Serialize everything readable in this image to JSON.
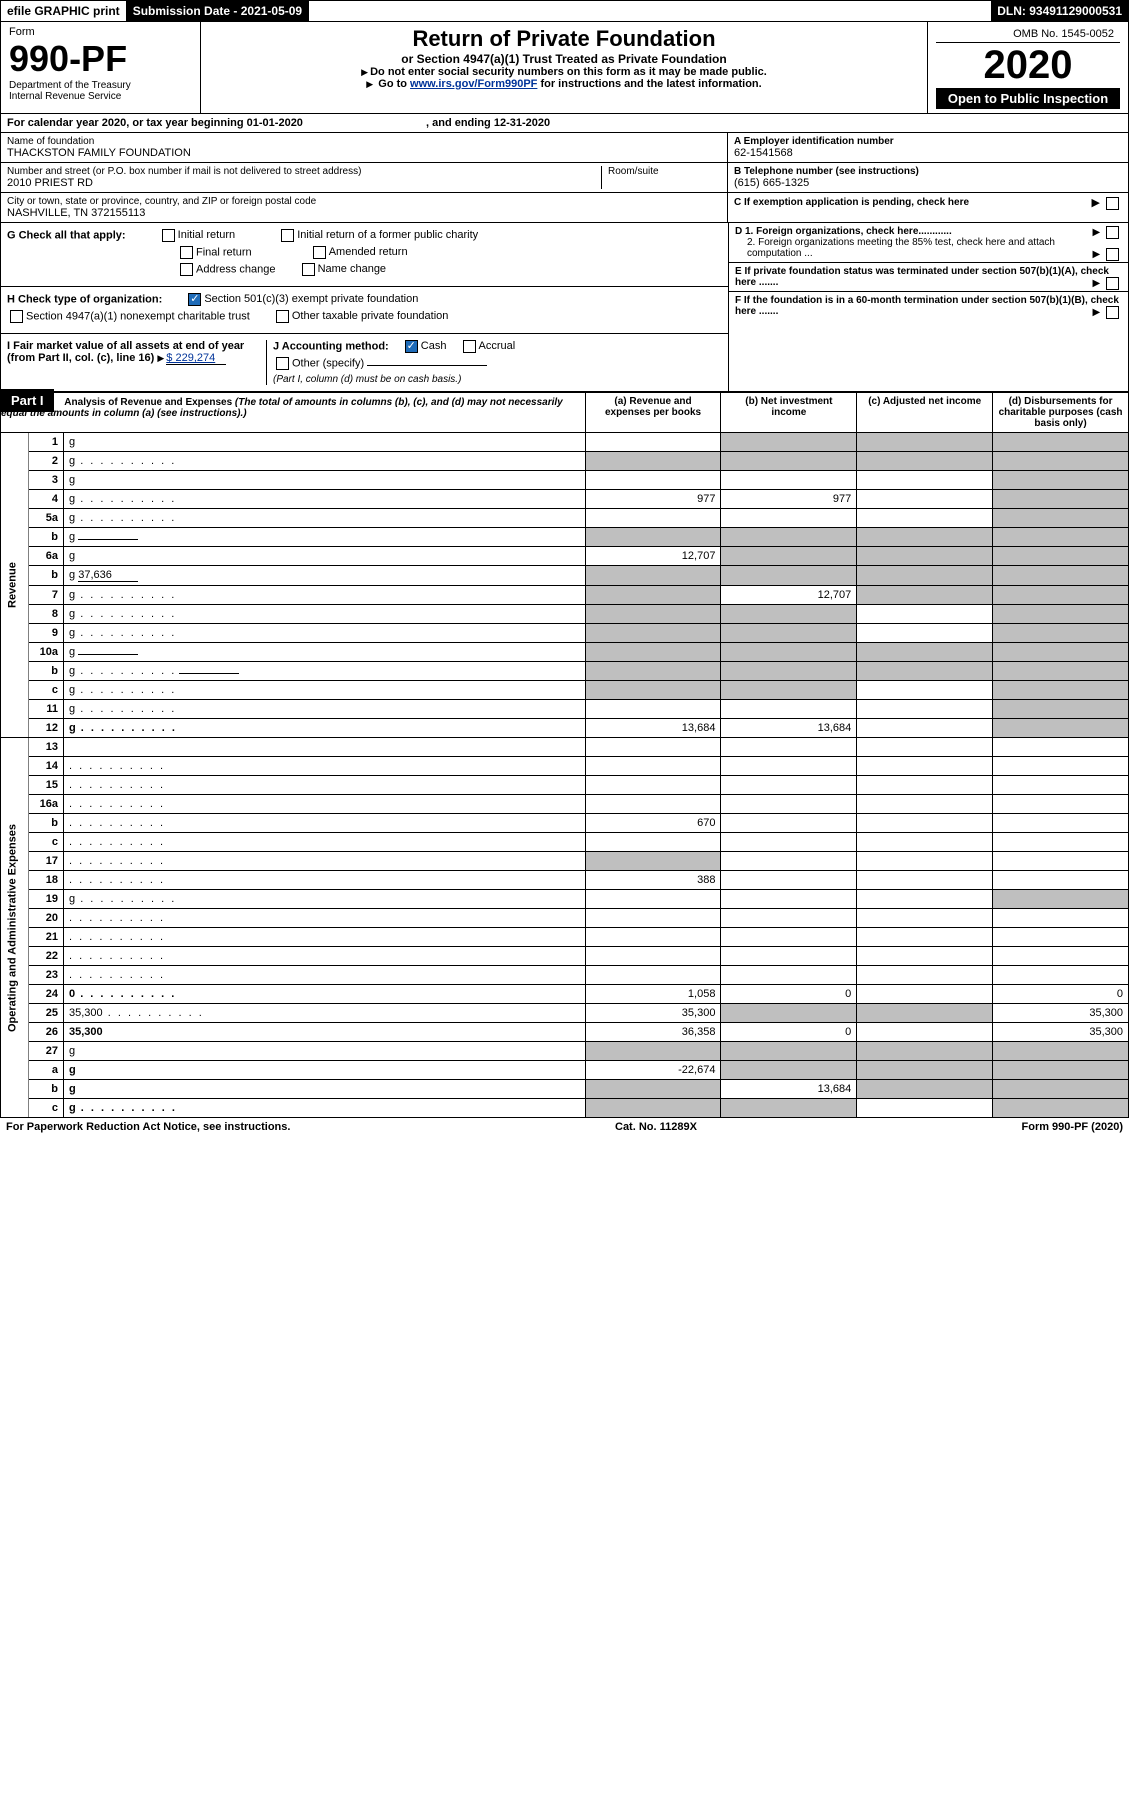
{
  "topbar": {
    "efile": "efile GRAPHIC print",
    "subm_label": "Submission Date - ",
    "subm_date": "2021-05-09",
    "dln_label": "DLN: ",
    "dln": "93491129000531"
  },
  "header": {
    "form_word": "Form",
    "form_no": "990-PF",
    "dept": "Department of the Treasury",
    "irs": "Internal Revenue Service",
    "omb": "OMB No. 1545-0052",
    "title": "Return of Private Foundation",
    "subtitle": "or Section 4947(a)(1) Trust Treated as Private Foundation",
    "instr1": "Do not enter social security numbers on this form as it may be made public.",
    "instr2_a": "Go to ",
    "instr2_link": "www.irs.gov/Form990PF",
    "instr2_b": " for instructions and the latest information.",
    "year": "2020",
    "inspect": "Open to Public Inspection"
  },
  "cal": {
    "text_a": "For calendar year 2020, or tax year beginning ",
    "begin": "01-01-2020",
    "text_b": ", and ending ",
    "end": "12-31-2020"
  },
  "info": {
    "name_label": "Name of foundation",
    "name": "THACKSTON FAMILY FOUNDATION",
    "addr_label": "Number and street (or P.O. box number if mail is not delivered to street address)",
    "addr": "2010 PRIEST RD",
    "room_label": "Room/suite",
    "city_label": "City or town, state or province, country, and ZIP or foreign postal code",
    "city": "NASHVILLE, TN  372155113",
    "a_label": "A Employer identification number",
    "a_val": "62-1541568",
    "b_label": "B Telephone number (see instructions)",
    "b_val": "(615) 665-1325",
    "c_label": "C If exemption application is pending, check here",
    "d1": "D 1. Foreign organizations, check here............",
    "d2": "2. Foreign organizations meeting the 85% test, check here and attach computation ...",
    "e": "E  If private foundation status was terminated under section 507(b)(1)(A), check here .......",
    "f": "F  If the foundation is in a 60-month termination under section 507(b)(1)(B), check here ......."
  },
  "g": {
    "label": "G Check all that apply:",
    "opts": [
      "Initial return",
      "Final return",
      "Address change",
      "Initial return of a former public charity",
      "Amended return",
      "Name change"
    ]
  },
  "h": {
    "label": "H Check type of organization:",
    "opt1": "Section 501(c)(3) exempt private foundation",
    "opt2": "Section 4947(a)(1) nonexempt charitable trust",
    "opt3": "Other taxable private foundation"
  },
  "i": {
    "label": "I Fair market value of all assets at end of year (from Part II, col. (c), line 16)",
    "val": "$  229,274"
  },
  "j": {
    "label": "J Accounting method:",
    "cash": "Cash",
    "accrual": "Accrual",
    "other": "Other (specify)",
    "note": "(Part I, column (d) must be on cash basis.)"
  },
  "part1": {
    "title": "Part I",
    "heading": "Analysis of Revenue and Expenses",
    "note": "(The total of amounts in columns (b), (c), and (d) may not necessarily equal the amounts in column (a) (see instructions).)",
    "col_a": "(a) Revenue and expenses per books",
    "col_b": "(b) Net investment income",
    "col_c": "(c) Adjusted net income",
    "col_d": "(d) Disbursements for charitable purposes (cash basis only)",
    "side_rev": "Revenue",
    "side_exp": "Operating and Administrative Expenses"
  },
  "rows": [
    {
      "n": "1",
      "d": "g",
      "a": "",
      "b": "g",
      "c": "g"
    },
    {
      "n": "2",
      "d": "g",
      "a": "g",
      "b": "g",
      "c": "g",
      "dots": 1
    },
    {
      "n": "3",
      "d": "g",
      "a": "",
      "b": "",
      "c": ""
    },
    {
      "n": "4",
      "d": "g",
      "a": "977",
      "b": "977",
      "c": "",
      "dots": 1
    },
    {
      "n": "5a",
      "d": "g",
      "a": "",
      "b": "",
      "c": "",
      "dots": 1
    },
    {
      "n": "b",
      "d": "g",
      "a": "g",
      "b": "g",
      "c": "g",
      "uline": 1
    },
    {
      "n": "6a",
      "d": "g",
      "a": "12,707",
      "b": "g",
      "c": "g"
    },
    {
      "n": "b",
      "d": "g",
      "a": "g",
      "b": "g",
      "c": "g",
      "uline": 1,
      "uv": "37,636"
    },
    {
      "n": "7",
      "d": "g",
      "a": "g",
      "b": "12,707",
      "c": "g",
      "dots": 1
    },
    {
      "n": "8",
      "d": "g",
      "a": "g",
      "b": "g",
      "c": "",
      "dots": 1
    },
    {
      "n": "9",
      "d": "g",
      "a": "g",
      "b": "g",
      "c": "",
      "dots": 1
    },
    {
      "n": "10a",
      "d": "g",
      "a": "g",
      "b": "g",
      "c": "g",
      "uline": 1
    },
    {
      "n": "b",
      "d": "g",
      "a": "g",
      "b": "g",
      "c": "g",
      "dots": 1,
      "uline": 1
    },
    {
      "n": "c",
      "d": "g",
      "a": "g",
      "b": "g",
      "c": "",
      "dots": 1
    },
    {
      "n": "11",
      "d": "g",
      "a": "",
      "b": "",
      "c": "",
      "dots": 1
    },
    {
      "n": "12",
      "d": "g",
      "a": "13,684",
      "b": "13,684",
      "c": "",
      "dots": 1,
      "bold": 1
    },
    {
      "n": "13",
      "d": "",
      "a": "",
      "b": "",
      "c": ""
    },
    {
      "n": "14",
      "d": "",
      "a": "",
      "b": "",
      "c": "",
      "dots": 1
    },
    {
      "n": "15",
      "d": "",
      "a": "",
      "b": "",
      "c": "",
      "dots": 1
    },
    {
      "n": "16a",
      "d": "",
      "a": "",
      "b": "",
      "c": "",
      "dots": 1
    },
    {
      "n": "b",
      "d": "",
      "a": "670",
      "b": "",
      "c": "",
      "dots": 1
    },
    {
      "n": "c",
      "d": "",
      "a": "",
      "b": "",
      "c": "",
      "dots": 1
    },
    {
      "n": "17",
      "d": "",
      "a": "g",
      "b": "",
      "c": "",
      "dots": 1
    },
    {
      "n": "18",
      "d": "",
      "a": "388",
      "b": "",
      "c": "",
      "dots": 1
    },
    {
      "n": "19",
      "d": "g",
      "a": "",
      "b": "",
      "c": "",
      "dots": 1
    },
    {
      "n": "20",
      "d": "",
      "a": "",
      "b": "",
      "c": "",
      "dots": 1
    },
    {
      "n": "21",
      "d": "",
      "a": "",
      "b": "",
      "c": "",
      "dots": 1
    },
    {
      "n": "22",
      "d": "",
      "a": "",
      "b": "",
      "c": "",
      "dots": 1
    },
    {
      "n": "23",
      "d": "",
      "a": "",
      "b": "",
      "c": "",
      "dots": 1
    },
    {
      "n": "24",
      "d": "0",
      "a": "1,058",
      "b": "0",
      "c": "",
      "dots": 1,
      "bold": 1
    },
    {
      "n": "25",
      "d": "35,300",
      "a": "35,300",
      "b": "g",
      "c": "g",
      "dots": 1
    },
    {
      "n": "26",
      "d": "35,300",
      "a": "36,358",
      "b": "0",
      "c": "",
      "bold": 1
    },
    {
      "n": "27",
      "d": "g",
      "a": "g",
      "b": "g",
      "c": "g"
    },
    {
      "n": "a",
      "d": "g",
      "a": "-22,674",
      "b": "g",
      "c": "g",
      "bold": 1
    },
    {
      "n": "b",
      "d": "g",
      "a": "g",
      "b": "13,684",
      "c": "g",
      "bold": 1
    },
    {
      "n": "c",
      "d": "g",
      "a": "g",
      "b": "g",
      "c": "",
      "bold": 1,
      "dots": 1
    }
  ],
  "footer": {
    "left": "For Paperwork Reduction Act Notice, see instructions.",
    "mid": "Cat. No. 11289X",
    "right": "Form 990-PF (2020)"
  },
  "colors": {
    "grey": "#bfbfbf",
    "link": "#003399",
    "check": "#1e6bb8"
  }
}
